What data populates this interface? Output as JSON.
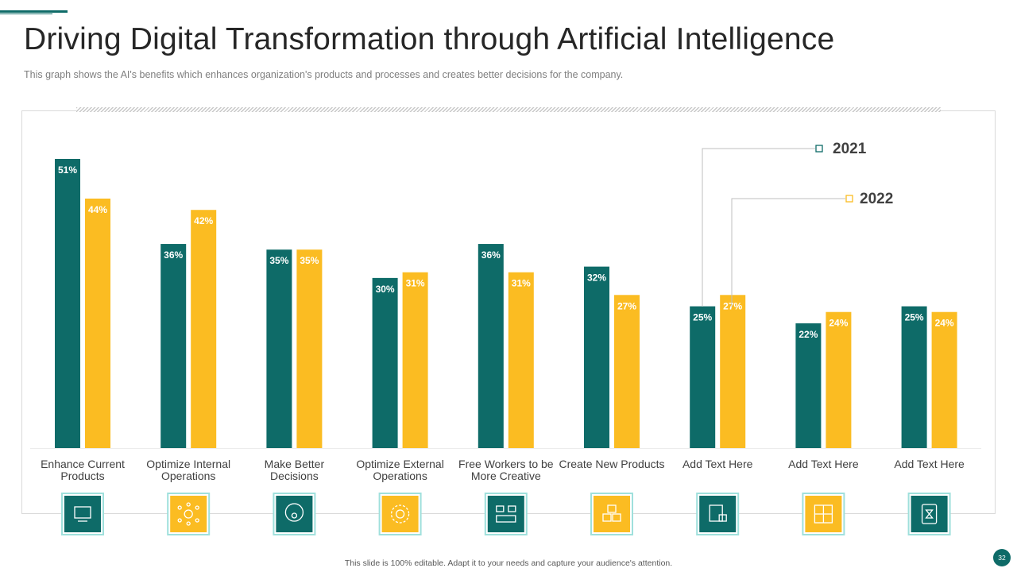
{
  "slide": {
    "title": "Driving Digital Transformation through Artificial Intelligence",
    "subtitle": "This graph shows the AI's benefits which enhances organization's products and processes and creates better decisions for the company.",
    "footer": "This slide is 100% editable.  Adapt it to your needs and capture your audience's attention.",
    "page_number": "32"
  },
  "colors": {
    "teal": "#0e6b68",
    "yellow": "#fbbc22",
    "icon_box_border": "#9fe0dc"
  },
  "chart_data": {
    "type": "bar",
    "title": "",
    "xlabel": "",
    "ylabel": "",
    "ylim": [
      0,
      60
    ],
    "grid": false,
    "legend_position": "top-right",
    "categories": [
      [
        "Enhance Current",
        "Products"
      ],
      [
        "Optimize Internal",
        "Operations"
      ],
      [
        "Make Better",
        "Decisions"
      ],
      [
        "Optimize External",
        "Operations"
      ],
      [
        "Free Workers to be",
        "More Creative"
      ],
      [
        "Create New Products"
      ],
      [
        "Add Text Here"
      ],
      [
        "Add Text Here"
      ],
      [
        "Add Text Here"
      ]
    ],
    "series": [
      {
        "name": "2021",
        "color": "#0e6b68",
        "values": [
          51,
          36,
          35,
          30,
          36,
          32,
          25,
          22,
          25
        ]
      },
      {
        "name": "2022",
        "color": "#fbbc22",
        "values": [
          44,
          42,
          35,
          31,
          31,
          27,
          27,
          24,
          24
        ]
      }
    ],
    "value_suffix": "%"
  },
  "icons": [
    {
      "name": "monitor-box-icon",
      "style": "teal"
    },
    {
      "name": "network-hub-icon",
      "style": "yellow"
    },
    {
      "name": "team-idea-icon",
      "style": "teal"
    },
    {
      "name": "gear-cog-icon",
      "style": "yellow"
    },
    {
      "name": "meeting-chat-icon",
      "style": "teal"
    },
    {
      "name": "product-boxes-icon",
      "style": "yellow"
    },
    {
      "name": "secure-printer-icon",
      "style": "teal"
    },
    {
      "name": "calculator-icon",
      "style": "yellow"
    },
    {
      "name": "hourglass-phone-icon",
      "style": "teal"
    }
  ]
}
